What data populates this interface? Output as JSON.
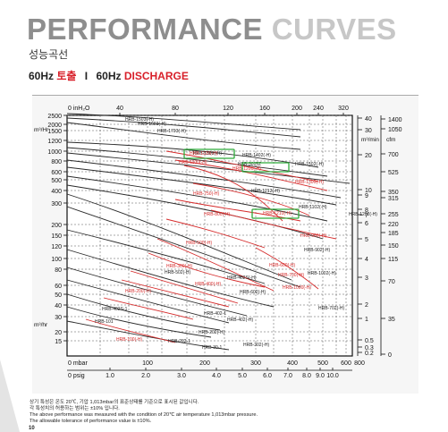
{
  "header": {
    "title_main": "PERFORMANCE",
    "title_accent": "CURVES",
    "subtitle": "성능곡선",
    "hz_left": "60Hz",
    "hz_left_red": "토출",
    "separator": "I",
    "hz_right": "60Hz",
    "hz_right_red": "DISCHARGE"
  },
  "chart_data": {
    "type": "line",
    "left_axis_labels": [
      "2500",
      "2000",
      "1500",
      "1200",
      "1000",
      "800",
      "600",
      "500",
      "400",
      "300",
      "200",
      "150",
      "120",
      "100",
      "80",
      "60",
      "50",
      "40",
      "30",
      "20",
      "15"
    ],
    "left_axis_units": [
      "m³/Hr",
      "m³/hr"
    ],
    "right_axis_a_labels": [
      "40",
      "30",
      "20",
      "10",
      "9",
      "8",
      "7",
      "6",
      "5",
      "4",
      "3",
      "2",
      "1",
      "0.5",
      "0.3",
      "0.2"
    ],
    "right_axis_b_labels": [
      "1400",
      "1050",
      "700",
      "525",
      "350",
      "315",
      "255",
      "220",
      "185",
      "150",
      "115",
      "70",
      "35",
      "0"
    ],
    "right_axis_units": [
      "m³/min",
      "cfm"
    ],
    "top_axis_prefix": "0   inH₂O",
    "top_axis_labels": [
      "40",
      "80",
      "120",
      "160",
      "200",
      "240",
      "320"
    ],
    "bottom_mbar_prefix": "0  mbar",
    "bottom_mbar_labels": [
      "100",
      "200",
      "300",
      "400",
      "500",
      "600",
      "800"
    ],
    "bottom_psig_prefix": "0  psig",
    "bottom_psig_labels": [
      "1.0",
      "2.0",
      "3.0",
      "4.0",
      "5.0",
      "6.0",
      "7.0",
      "8.0",
      "9.0",
      "10.0"
    ],
    "black_labels": [
      "HRB-1503(-H)",
      "HRB-1603(-H)",
      "HRB-1703(-H)",
      "HRB-1302(-H)",
      "HRB-1402(-H)",
      "HSB-3015Z",
      "HRB-1502(-H)",
      "HRB-1212(-H)",
      "HRB-1102(-H)",
      "HRB-1202(-H)",
      "HRB-902(-H)",
      "HRB-1002(-H)",
      "HRB-502(-H)",
      "HRB-602(-H)",
      "HRB-402S(-H)",
      "HRB-702(-H)",
      "HRB-402S-1",
      "HRB-402-1",
      "HRB-402(-H)",
      "HRB-302(-H)",
      "HRB-202(-H)",
      "HRB-101",
      "HRB-202-1",
      "HRB-30-1"
    ],
    "red_labels": [
      "HRB-1100(-H)",
      "HRB-1200(-H)",
      "HRB-1120(-H)",
      "HRB-1300(-H)",
      "HRB-750(-H)",
      "HRB-1210(-H)",
      "HRB-800(-H)",
      "HRB-900(-H)",
      "HRB-500(-H)",
      "HRB-600(-H)",
      "HRB-700(-H)",
      "HRB-300(-H)",
      "HRB-1000(-H)",
      "HRB-400(-H)",
      "HRB-200(-H)",
      "HRB-100(-H)"
    ],
    "highlighted_labels": [
      "HRB-1120(-H)",
      "HRB-1212(-H)",
      "HRB-1210(-H)"
    ],
    "colors": {
      "pump_black": "#2a2a2a",
      "pump_red": "#d52a2a",
      "highlight": "#2eaa3a"
    }
  },
  "footnotes": [
    "상기 특성은 온도 20℃, 기압 1,013mbar의 표준상태를 기준으로 표시된 값입니다.",
    "각 특성치의 허용하는 범위는 ±10% 입니다.",
    "The above performance was measured with the condition of 20℃ air temperature 1,013mbar pressure.",
    "The allowable tolerance of performance value is ±10%."
  ],
  "page_number": "10"
}
